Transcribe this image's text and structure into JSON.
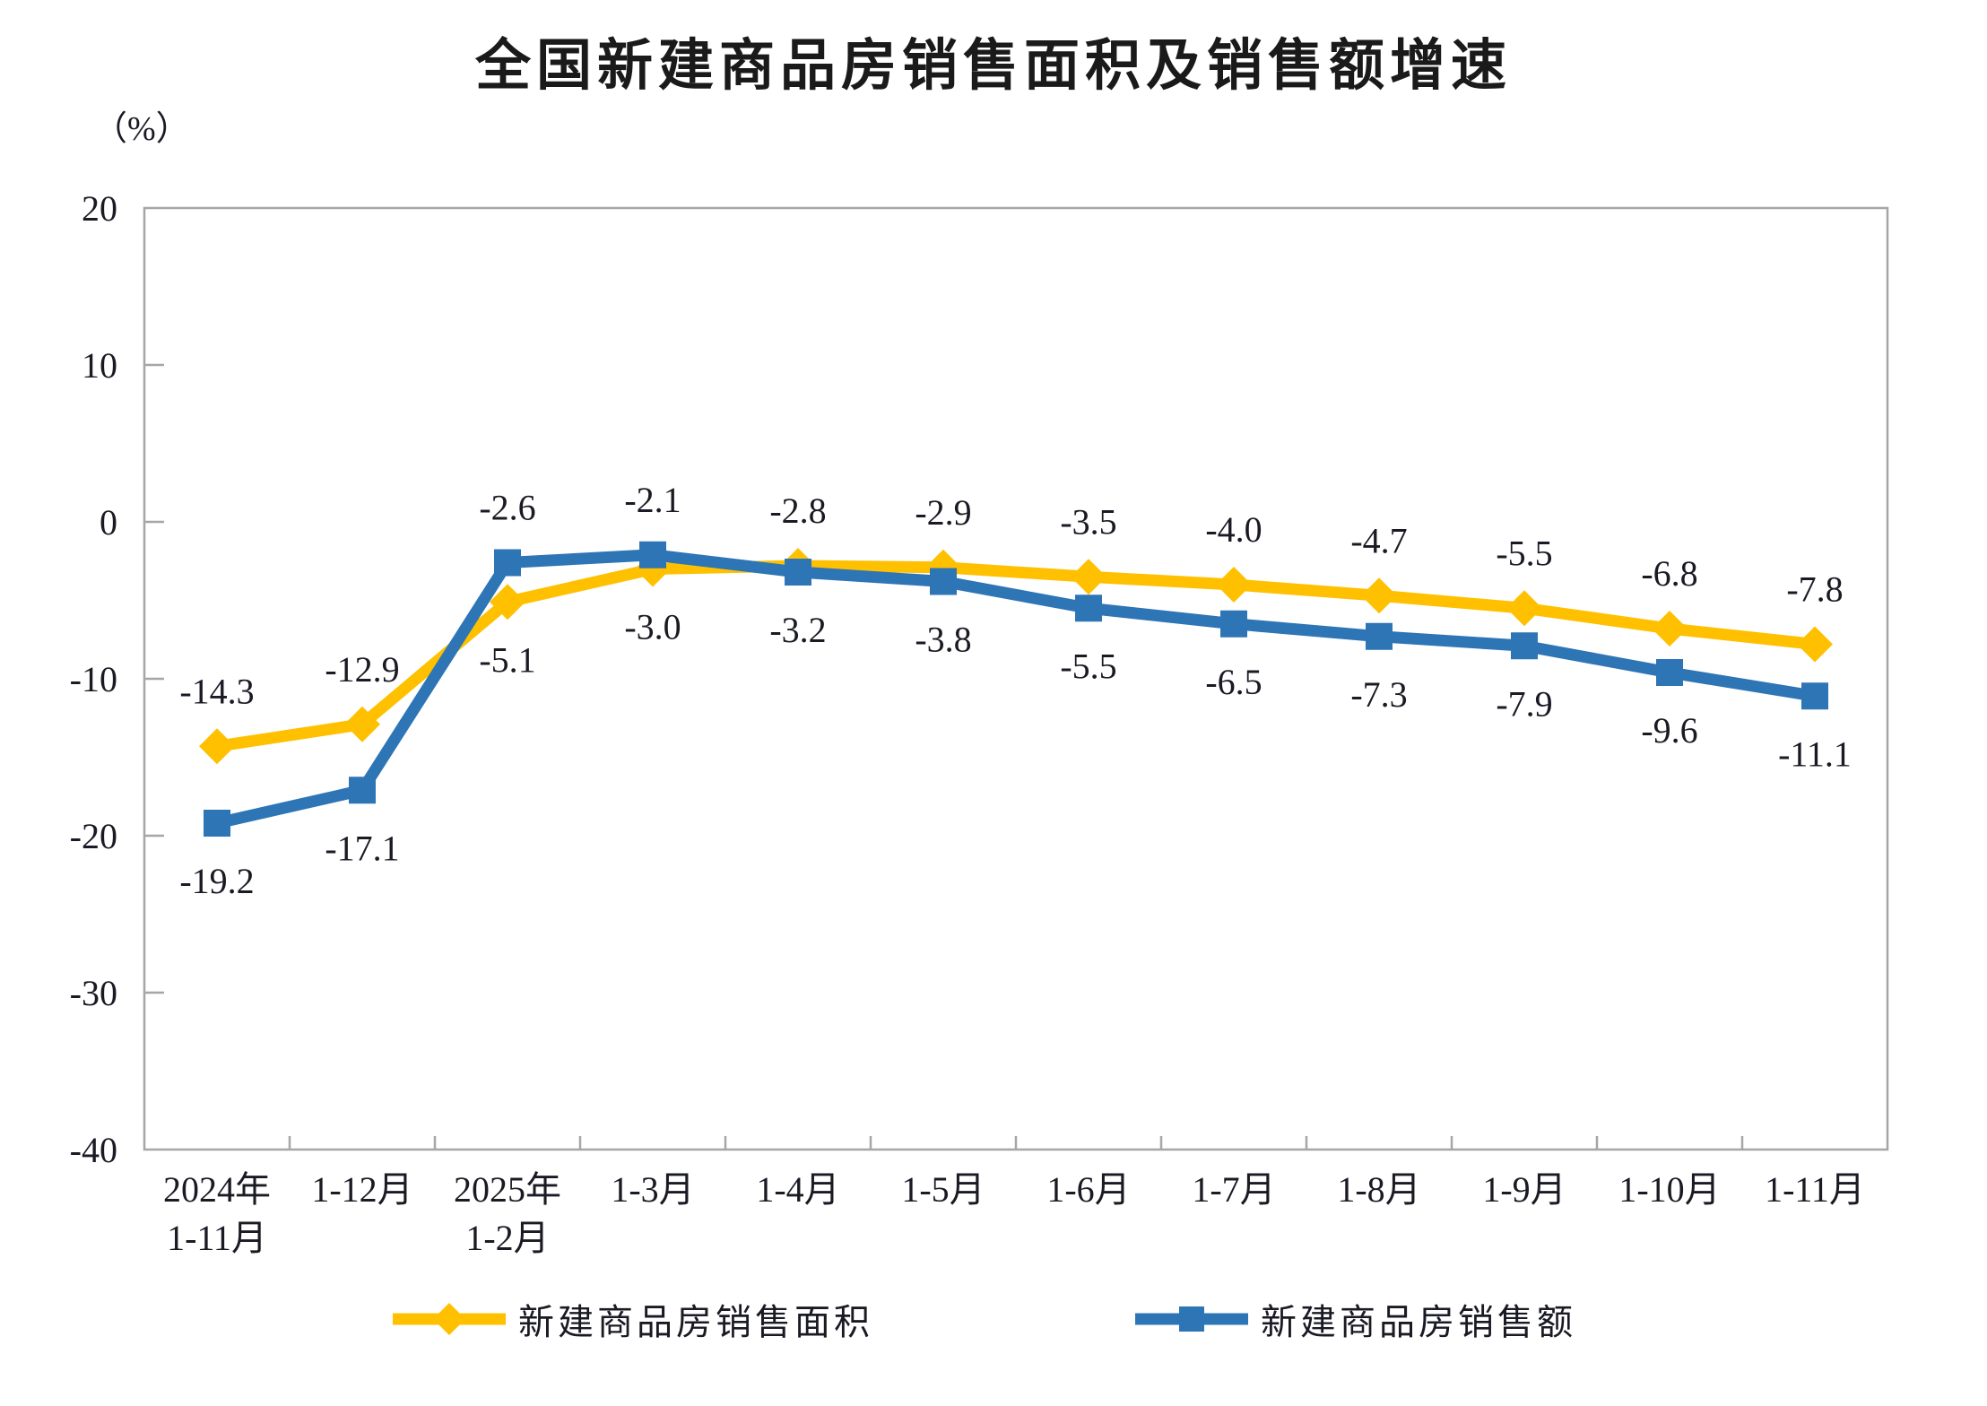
{
  "chart_data": {
    "type": "line",
    "title": "全国新建商品房销售面积及销售额增速",
    "y_unit": "（%）",
    "ylim": [
      -40,
      20
    ],
    "y_ticks": [
      20,
      10,
      0,
      -10,
      -20,
      -30,
      -40
    ],
    "grid": false,
    "legend_position": "bottom",
    "categories": [
      [
        "2024年",
        "1-11月"
      ],
      [
        "1-12月"
      ],
      [
        "2025年",
        "1-2月"
      ],
      [
        "1-3月"
      ],
      [
        "1-4月"
      ],
      [
        "1-5月"
      ],
      [
        "1-6月"
      ],
      [
        "1-7月"
      ],
      [
        "1-8月"
      ],
      [
        "1-9月"
      ],
      [
        "1-10月"
      ],
      [
        "1-11月"
      ]
    ],
    "series": [
      {
        "name": "新建商品房销售面积",
        "color": "#FFC000",
        "marker": "diamond",
        "values": [
          -14.3,
          -12.9,
          -5.1,
          -3.0,
          -2.8,
          -2.9,
          -3.5,
          -4.0,
          -4.7,
          -5.5,
          -6.8,
          -7.8
        ],
        "label_side": [
          "above",
          "above",
          "below",
          "below",
          "above",
          "above",
          "above",
          "above",
          "above",
          "above",
          "above",
          "above"
        ]
      },
      {
        "name": "新建商品房销售额",
        "color": "#2E75B6",
        "marker": "square",
        "values": [
          -19.2,
          -17.1,
          -2.6,
          -2.1,
          -3.2,
          -3.8,
          -5.5,
          -6.5,
          -7.3,
          -7.9,
          -9.6,
          -11.1
        ],
        "label_side": [
          "below",
          "below",
          "above",
          "above",
          "below",
          "below",
          "below",
          "below",
          "below",
          "below",
          "below",
          "below"
        ]
      }
    ],
    "axis_color": "#A6A6A6",
    "label_color": "#1A1A24"
  }
}
